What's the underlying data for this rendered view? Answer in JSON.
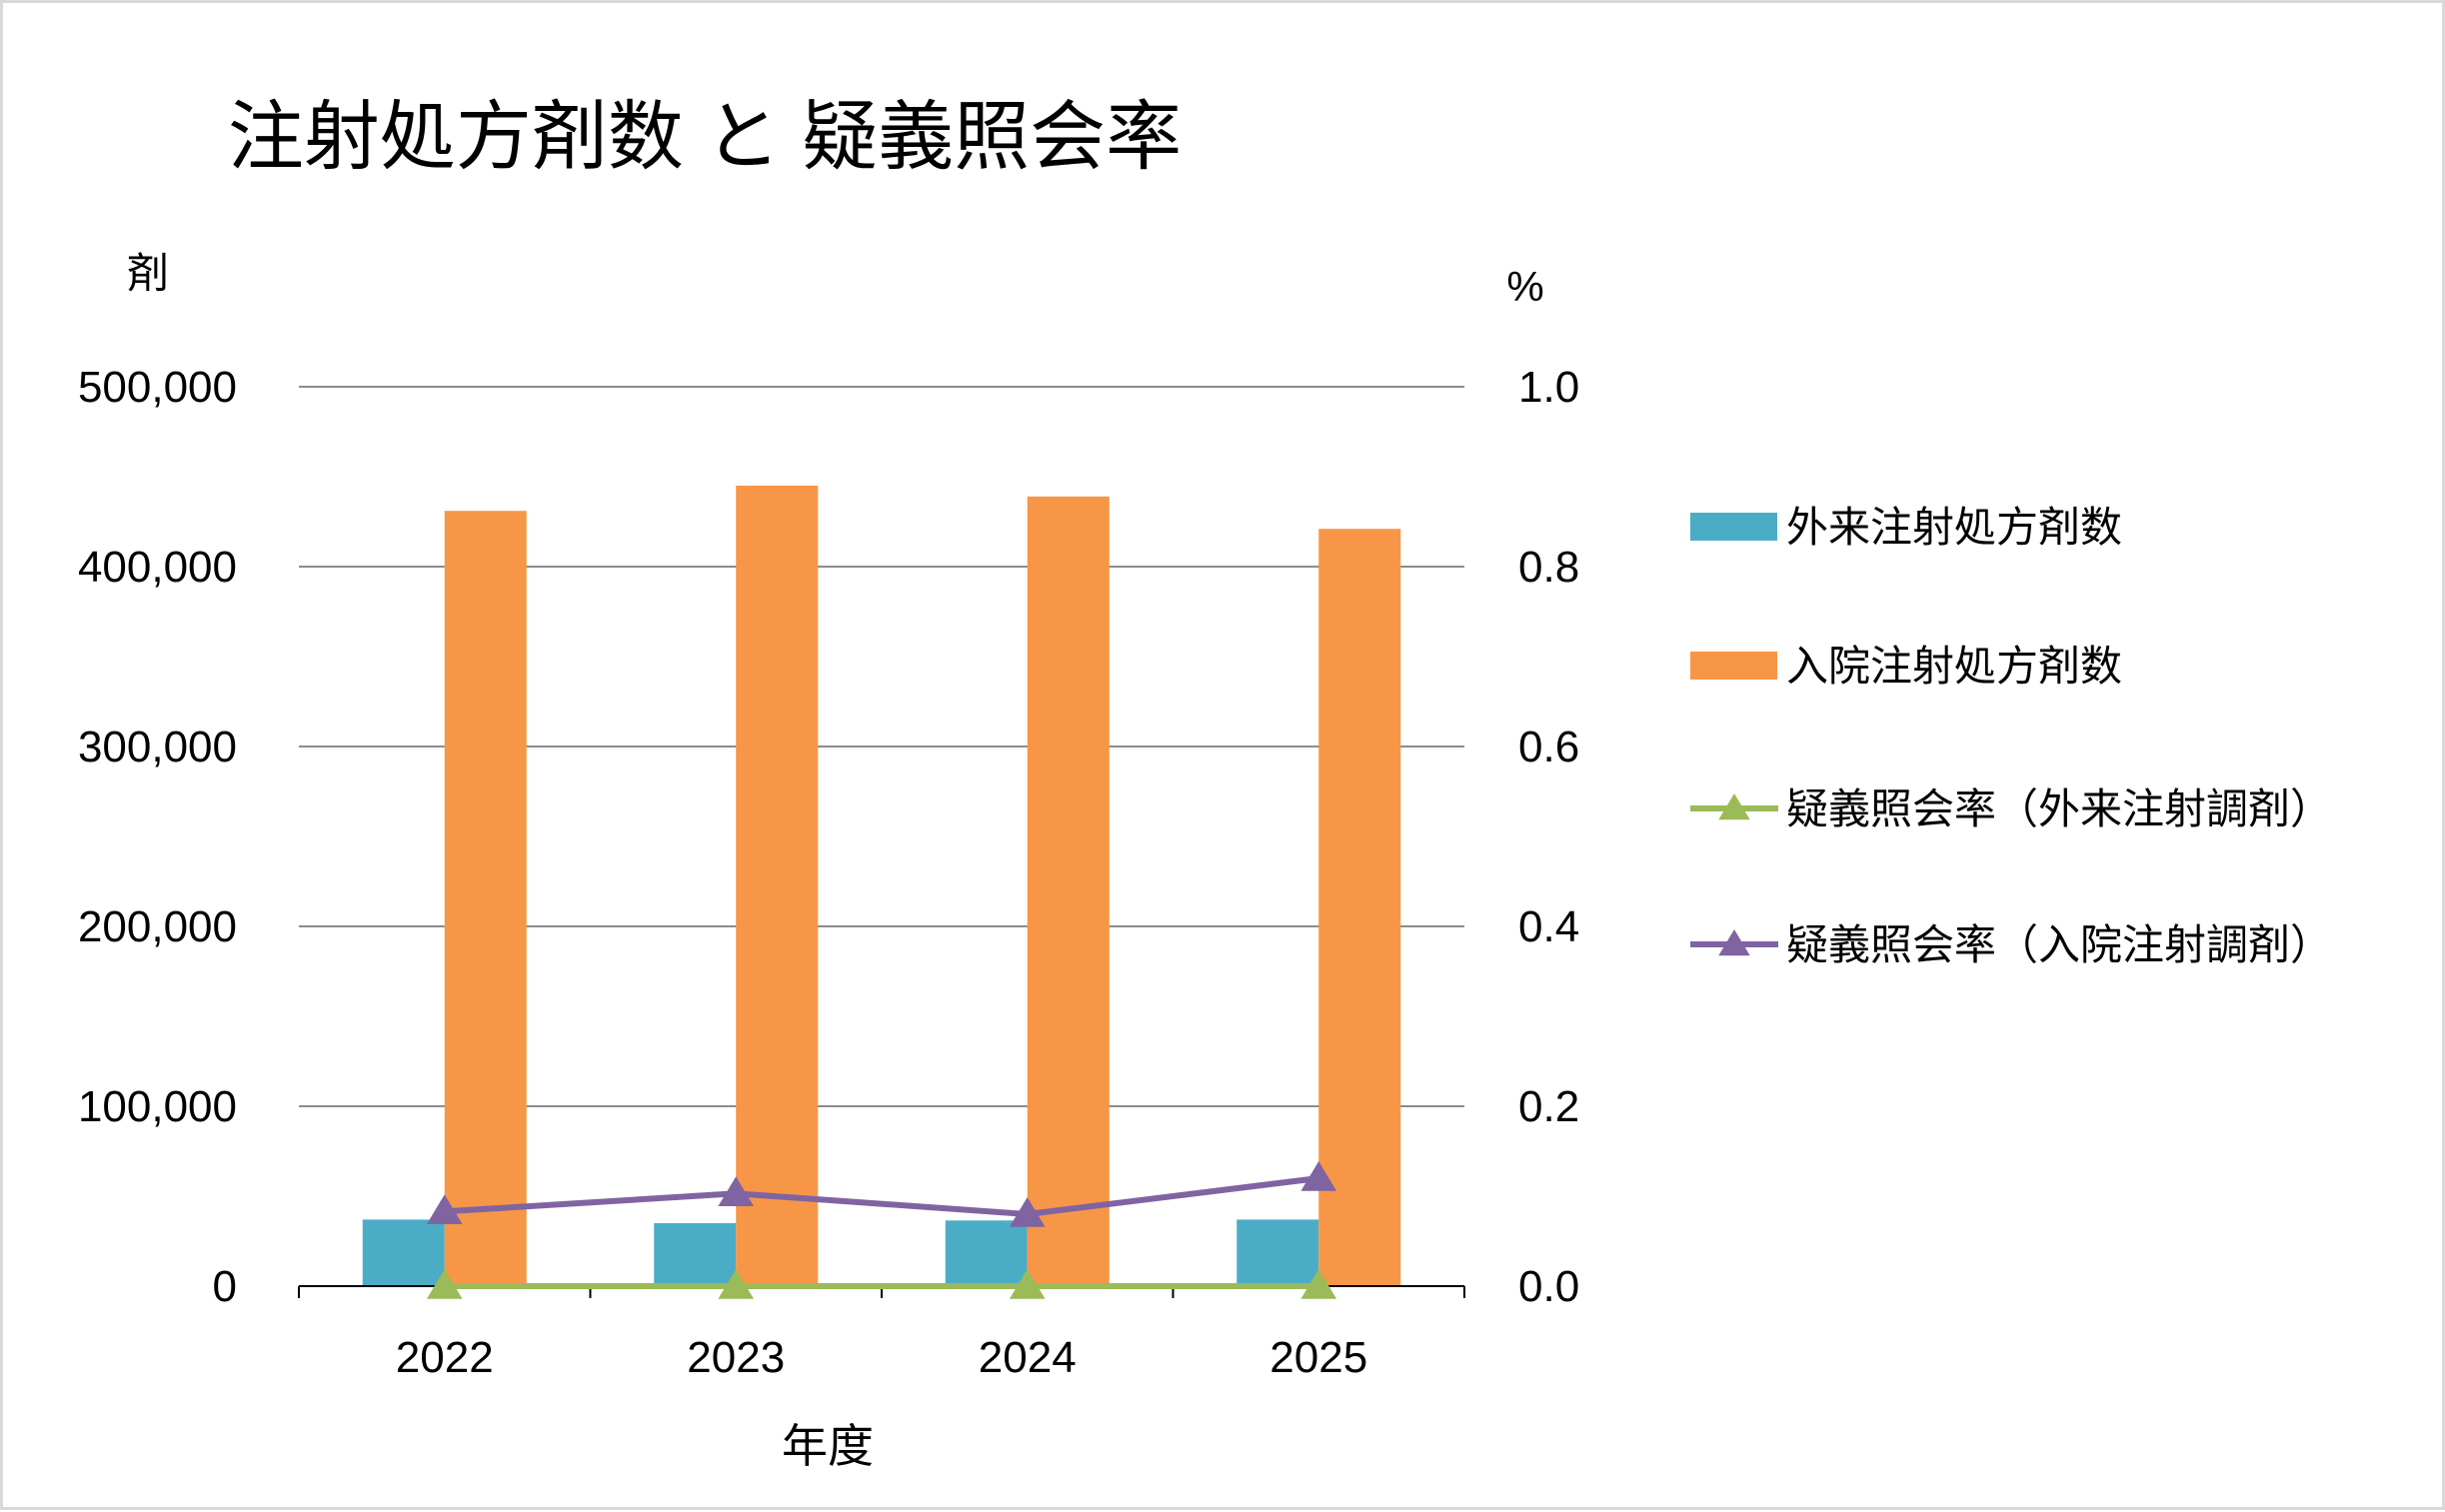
{
  "chart_data": {
    "type": "bar",
    "title": "注射処方剤数 と 疑義照会率",
    "xlabel": "年度",
    "ylabel_left": "剤",
    "ylabel_right": "%",
    "categories": [
      "2022",
      "2023",
      "2024",
      "2025"
    ],
    "ylim_left": [
      0,
      500000
    ],
    "ylim_right": [
      0,
      1.0
    ],
    "yticks_left": [
      "0",
      "100,000",
      "200,000",
      "300,000",
      "400,000",
      "500,000"
    ],
    "yticks_right": [
      "0.0",
      "0.2",
      "0.4",
      "0.6",
      "0.8",
      "1.0"
    ],
    "grid": true,
    "legend_position": "right",
    "series": [
      {
        "name": "外来注射処方剤数",
        "kind": "bar",
        "axis": "left",
        "color": "#4BACC6",
        "values": [
          37000,
          35000,
          36500,
          37000
        ]
      },
      {
        "name": "入院注射処方剤数",
        "kind": "bar",
        "axis": "left",
        "color": "#F79646",
        "values": [
          431000,
          445000,
          439000,
          421000
        ]
      },
      {
        "name": "疑義照会率（外来注射調剤）",
        "kind": "line",
        "axis": "right",
        "color": "#9BBB59",
        "marker": "triangle",
        "values": [
          0.0,
          0.0,
          0.0,
          0.0
        ]
      },
      {
        "name": "疑義照会率（入院注射調剤）",
        "kind": "line",
        "axis": "right",
        "color": "#8064A2",
        "marker": "triangle",
        "values": [
          0.083,
          0.103,
          0.08,
          0.12
        ]
      }
    ]
  }
}
